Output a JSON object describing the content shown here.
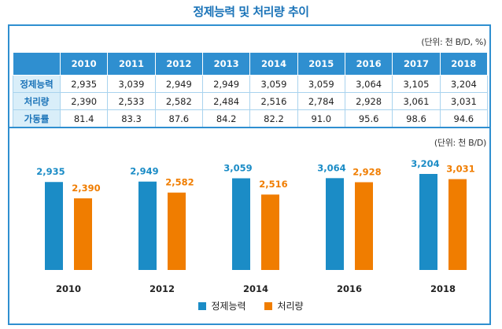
{
  "title": "정제능력 및 처리량 추이",
  "table": {
    "unit": "(단위: 천 B/D, %)",
    "years": [
      "2010",
      "2011",
      "2012",
      "2013",
      "2014",
      "2015",
      "2016",
      "2017",
      "2018"
    ],
    "rows": [
      {
        "label": "정제능력",
        "values": [
          "2,935",
          "3,039",
          "2,949",
          "2,949",
          "3,059",
          "3,059",
          "3,064",
          "3,105",
          "3,204"
        ]
      },
      {
        "label": "처리량",
        "values": [
          "2,390",
          "2,533",
          "2,582",
          "2,484",
          "2,516",
          "2,784",
          "2,928",
          "3,061",
          "3,031"
        ]
      },
      {
        "label": "가동률",
        "values": [
          "81.4",
          "83.3",
          "87.6",
          "84.2",
          "82.2",
          "91.0",
          "95.6",
          "98.6",
          "94.6"
        ]
      }
    ]
  },
  "chart_unit": "(단위: 천 B/D)",
  "chart_data": {
    "type": "bar",
    "title": "정제능력 및 처리량 추이",
    "categories": [
      "2010",
      "2012",
      "2014",
      "2016",
      "2018"
    ],
    "series": [
      {
        "name": "정제능력",
        "color": "#1b8cc6",
        "values": [
          2935,
          2949,
          3059,
          3064,
          3204
        ],
        "labels": [
          "2,935",
          "2,949",
          "3,059",
          "3,064",
          "3,204"
        ]
      },
      {
        "name": "처리량",
        "color": "#f07d00",
        "values": [
          2390,
          2582,
          2516,
          2928,
          3031
        ],
        "labels": [
          "2,390",
          "2,582",
          "2,516",
          "2,928",
          "3,031"
        ]
      }
    ],
    "ylim": [
      0,
      3204
    ],
    "xlabel": "",
    "ylabel": "천 B/D",
    "legend": "bottom-center"
  }
}
